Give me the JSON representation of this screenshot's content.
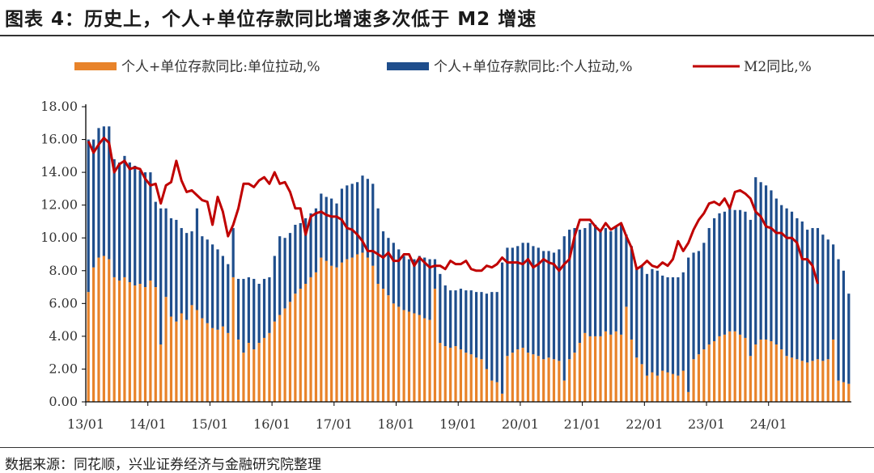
{
  "header": {
    "title": "图表 4：历史上，个人+单位存款同比增速多次低于 M2 增速"
  },
  "footer": {
    "source": "数据来源：同花顺，兴业证券经济与金融研究院整理"
  },
  "colors": {
    "unit_bar": "#E8832A",
    "personal_bar": "#1F4E8C",
    "m2_line": "#C00000"
  },
  "chart_data": {
    "type": "bar",
    "stacked": true,
    "title": "",
    "xlabel": "",
    "ylabel": "",
    "ylim": [
      0,
      18
    ],
    "yticks": [
      "0.00",
      "2.00",
      "4.00",
      "6.00",
      "8.00",
      "10.00",
      "12.00",
      "14.00",
      "16.00",
      "18.00"
    ],
    "xticks": [
      "13/01",
      "14/01",
      "15/01",
      "16/01",
      "17/01",
      "18/01",
      "19/01",
      "20/01",
      "21/01",
      "22/01",
      "23/01",
      "24/01"
    ],
    "legend_position": "top",
    "grid": false,
    "start_month": "2013-01",
    "series": [
      {
        "name": "个人+单位存款同比:单位拉动,%",
        "kind": "bar",
        "values": [
          6.7,
          8.2,
          8.8,
          8.9,
          8.7,
          7.6,
          7.4,
          7.6,
          7.3,
          7.1,
          7.2,
          7.0,
          7.4,
          7.0,
          3.5,
          6.4,
          5.2,
          4.9,
          5.4,
          5.0,
          5.9,
          5.6,
          5.1,
          4.8,
          4.5,
          4.4,
          4.6,
          4.2,
          7.6,
          3.8,
          3.0,
          3.6,
          3.2,
          3.6,
          3.9,
          4.2,
          4.9,
          5.3,
          5.7,
          6.1,
          6.6,
          6.9,
          7.2,
          7.6,
          7.9,
          8.8,
          8.6,
          8.3,
          8.2,
          8.5,
          8.7,
          8.8,
          9.0,
          9.1,
          8.8,
          8.3,
          7.2,
          6.9,
          6.5,
          6.0,
          5.8,
          5.6,
          5.5,
          5.4,
          5.3,
          5.1,
          5.0,
          6.9,
          3.6,
          3.4,
          3.3,
          3.4,
          3.2,
          3.0,
          2.9,
          2.7,
          2.6,
          2.0,
          1.3,
          1.2,
          0.5,
          2.8,
          3.0,
          3.2,
          3.3,
          3.0,
          2.9,
          2.8,
          2.6,
          2.7,
          2.6,
          2.5,
          1.3,
          2.6,
          3.0,
          3.6,
          4.2,
          4.0,
          4.0,
          4.0,
          4.3,
          4.1,
          4.3,
          4.1,
          5.8,
          3.8,
          2.7,
          2.3,
          1.6,
          1.8,
          1.6,
          1.9,
          1.8,
          1.7,
          1.6,
          1.9,
          0.6,
          2.6,
          2.9,
          3.2,
          3.5,
          3.7,
          4.0,
          4.1,
          4.3,
          4.3,
          4.1,
          3.9,
          2.8,
          3.5,
          3.8,
          3.8,
          3.7,
          3.5,
          3.2,
          2.8,
          2.7,
          2.6,
          2.5,
          2.4,
          2.5,
          2.6,
          2.5,
          2.6,
          3.8,
          1.3,
          1.2,
          1.1
        ],
        "color": "#E8832A"
      },
      {
        "name": "个人+单位存款同比:个人拉动,%",
        "kind": "bar",
        "values": [
          9.3,
          7.8,
          7.9,
          7.9,
          8.1,
          7.2,
          7.2,
          7.4,
          7.3,
          7.3,
          6.9,
          7.0,
          6.6,
          5.2,
          8.3,
          5.4,
          6.0,
          6.2,
          5.2,
          5.3,
          4.5,
          6.2,
          5.0,
          5.1,
          5.1,
          4.9,
          4.3,
          4.2,
          3.0,
          3.7,
          4.5,
          4.0,
          4.3,
          3.6,
          3.6,
          3.4,
          4.0,
          4.8,
          4.3,
          4.2,
          4.2,
          4.0,
          4.0,
          3.9,
          3.9,
          3.9,
          3.9,
          4.1,
          3.9,
          4.5,
          4.5,
          4.5,
          4.4,
          4.7,
          4.8,
          5.0,
          4.6,
          3.5,
          3.5,
          3.7,
          3.5,
          3.3,
          3.2,
          3.3,
          3.6,
          3.7,
          3.7,
          1.8,
          4.2,
          3.7,
          3.5,
          3.4,
          3.7,
          3.8,
          3.9,
          4.0,
          4.1,
          4.6,
          5.4,
          5.5,
          8.0,
          6.6,
          6.4,
          6.3,
          6.4,
          6.7,
          6.6,
          6.6,
          6.6,
          6.5,
          6.5,
          6.8,
          8.8,
          7.9,
          7.6,
          6.9,
          6.4,
          6.9,
          6.8,
          6.4,
          6.3,
          6.3,
          6.4,
          6.7,
          4.4,
          5.7,
          5.5,
          6.0,
          6.2,
          6.3,
          6.4,
          5.8,
          5.8,
          5.9,
          6.0,
          6.0,
          8.2,
          6.5,
          6.3,
          6.5,
          7.1,
          7.5,
          7.5,
          7.5,
          7.5,
          7.4,
          7.6,
          7.7,
          8.3,
          10.2,
          9.6,
          9.4,
          9.2,
          8.9,
          8.8,
          9.0,
          8.9,
          8.6,
          8.5,
          8.1,
          8.1,
          8.0,
          7.7,
          7.3,
          5.8,
          7.4,
          6.8,
          5.5
        ],
        "color": "#1F4E8C"
      },
      {
        "name": "M2同比,%",
        "kind": "line",
        "values": [
          15.9,
          15.2,
          15.7,
          16.1,
          15.8,
          14.0,
          14.5,
          14.7,
          14.2,
          14.3,
          14.2,
          13.6,
          13.2,
          13.3,
          12.1,
          13.2,
          13.4,
          14.7,
          13.5,
          12.8,
          12.9,
          12.6,
          12.3,
          12.2,
          10.8,
          12.5,
          11.6,
          10.1,
          10.8,
          11.8,
          13.3,
          13.3,
          13.1,
          13.5,
          13.7,
          13.3,
          14.0,
          13.3,
          13.4,
          12.8,
          11.8,
          11.8,
          10.2,
          11.3,
          11.5,
          11.6,
          11.4,
          11.3,
          11.3,
          11.1,
          10.6,
          10.5,
          10.2,
          9.8,
          9.2,
          9.2,
          9.0,
          8.8,
          9.1,
          8.6,
          8.6,
          9.0,
          9.0,
          8.3,
          8.8,
          8.5,
          8.2,
          8.3,
          8.3,
          8.1,
          8.6,
          8.4,
          8.4,
          8.6,
          8.1,
          8.0,
          8.0,
          8.3,
          8.2,
          8.4,
          8.8,
          8.5,
          8.5,
          8.5,
          8.4,
          8.7,
          8.2,
          8.4,
          8.7,
          8.5,
          8.4,
          8.0,
          8.4,
          8.7,
          10.1,
          11.1,
          11.1,
          11.1,
          10.7,
          10.4,
          10.9,
          10.5,
          10.7,
          10.9,
          10.1,
          9.4,
          8.1,
          8.3,
          8.6,
          8.3,
          8.2,
          8.5,
          8.3,
          8.7,
          9.8,
          9.2,
          9.7,
          10.5,
          11.1,
          11.5,
          12.1,
          12.2,
          12.0,
          12.4,
          11.8,
          12.8,
          12.9,
          12.7,
          12.4,
          11.6,
          11.3,
          10.7,
          10.6,
          10.3,
          10.3,
          10.0,
          10.0,
          9.7,
          8.7,
          8.7,
          8.3,
          7.2
        ],
        "color": "#C00000"
      }
    ]
  }
}
